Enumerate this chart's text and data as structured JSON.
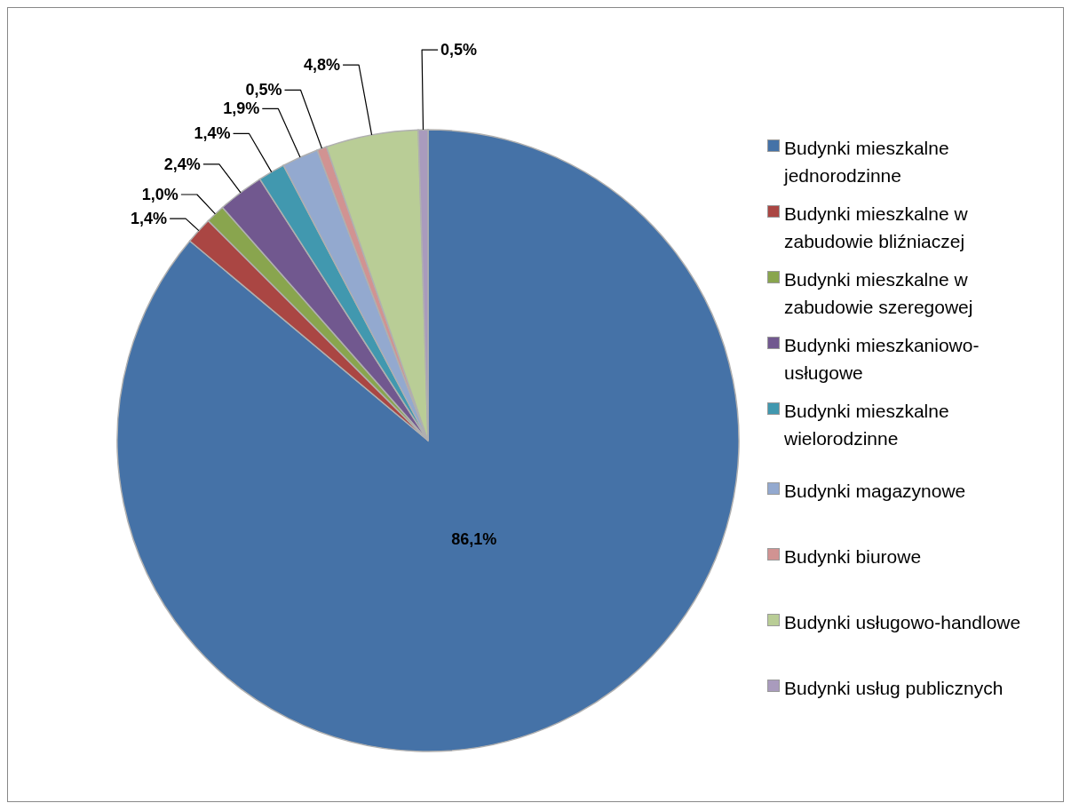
{
  "chart_data": {
    "type": "pie",
    "categories": [
      "Budynki mieszkalne jednorodzinne",
      "Budynki mieszkalne w zabudowie bliźniaczej",
      "Budynki mieszkalne w zabudowie szeregowej",
      "Budynki mieszkaniowo-usługowe",
      "Budynki mieszkalne wielorodzinne",
      "Budynki magazynowe",
      "Budynki biurowe",
      "Budynki usługowo-handlowe",
      "Budynki usług publicznych"
    ],
    "values": [
      86.1,
      1.4,
      1.0,
      2.4,
      1.4,
      1.9,
      0.5,
      4.8,
      0.5
    ],
    "value_labels": [
      "86,1%",
      "1,4%",
      "1,0%",
      "2,4%",
      "1,4%",
      "1,9%",
      "0,5%",
      "4,8%",
      "0,5%"
    ],
    "colors": [
      "#4572a7",
      "#aa4643",
      "#89a54e",
      "#71588f",
      "#4198af",
      "#93a9cf",
      "#d19392",
      "#b9cd96",
      "#a99bbd"
    ],
    "legend": "right"
  }
}
